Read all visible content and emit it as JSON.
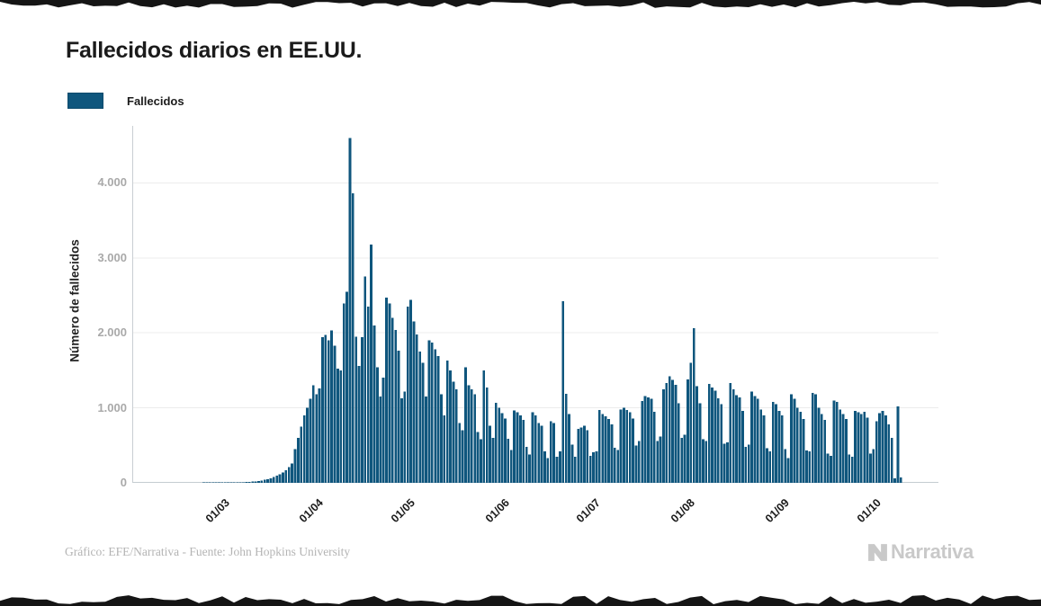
{
  "page": {
    "title": "Fallecidos diarios en EE.UU.",
    "legend": {
      "label": "Fallecidos",
      "swatch_color": "#0F567D"
    },
    "footer": {
      "credit": "Gráfico: EFE/Narrativa - Fuente: John Hopkins University"
    },
    "brand": {
      "name": "Narrativa"
    }
  },
  "chart_data": {
    "type": "bar",
    "title": "Fallecidos diarios en EE.UU.",
    "xlabel": "",
    "ylabel": "Número de fallecidos",
    "legend_entries": [
      "Fallecidos"
    ],
    "legend_position": "top-left",
    "bar_color": "#0F567D",
    "grid": "horizontal",
    "ylim": [
      0,
      4600
    ],
    "ytick_values": [
      0,
      1000,
      2000,
      3000,
      4000
    ],
    "ytick_labels": [
      "0",
      "1.000",
      "2.000",
      "3.000",
      "4.000"
    ],
    "xtick_labels": [
      "01/03",
      "01/04",
      "01/05",
      "01/06",
      "01/07",
      "01/08",
      "01/09",
      "01/10"
    ],
    "xtick_day_index": [
      25,
      56,
      86,
      117,
      147,
      178,
      209,
      239
    ],
    "values": [
      0,
      0,
      0,
      0,
      0,
      0,
      0,
      0,
      0,
      0,
      0,
      0,
      0,
      0,
      0,
      0,
      0,
      0,
      0,
      0,
      0,
      0,
      0,
      1,
      1,
      1,
      2,
      3,
      2,
      4,
      3,
      4,
      5,
      4,
      6,
      7,
      9,
      11,
      14,
      17,
      21,
      26,
      32,
      40,
      50,
      62,
      78,
      95,
      115,
      140,
      170,
      210,
      260,
      450,
      600,
      750,
      900,
      1000,
      1120,
      1300,
      1180,
      1260,
      1940,
      1970,
      1900,
      2030,
      1830,
      1520,
      1500,
      2390,
      2550,
      4600,
      3860,
      1950,
      1560,
      1940,
      2750,
      2350,
      3180,
      2100,
      1540,
      1150,
      1400,
      2470,
      2390,
      2200,
      2040,
      1760,
      1130,
      1220,
      2350,
      2440,
      2150,
      1980,
      1750,
      1600,
      1150,
      1900,
      1870,
      1780,
      1690,
      1180,
      900,
      1630,
      1500,
      1350,
      1250,
      800,
      700,
      1540,
      1300,
      1250,
      1180,
      680,
      580,
      1500,
      1270,
      760,
      600,
      1065,
      1000,
      930,
      860,
      585,
      440,
      965,
      940,
      900,
      840,
      480,
      380,
      940,
      900,
      800,
      760,
      420,
      330,
      820,
      800,
      350,
      420,
      2420,
      1190,
      920,
      510,
      350,
      720,
      740,
      760,
      700,
      360,
      410,
      420,
      970,
      920,
      890,
      850,
      780,
      470,
      440,
      980,
      1000,
      970,
      940,
      860,
      500,
      560,
      1090,
      1160,
      1140,
      1120,
      950,
      560,
      620,
      1250,
      1330,
      1420,
      1370,
      1310,
      1060,
      600,
      640,
      1380,
      1600,
      2060,
      1290,
      1060,
      580,
      560,
      1320,
      1270,
      1230,
      1130,
      1050,
      520,
      540,
      1330,
      1250,
      1170,
      1140,
      960,
      480,
      510,
      1220,
      1160,
      1120,
      980,
      900,
      460,
      420,
      1080,
      1050,
      960,
      900,
      450,
      330,
      1180,
      1120,
      1000,
      950,
      850,
      430,
      420,
      1200,
      1180,
      1000,
      920,
      840,
      390,
      360,
      1100,
      1080,
      980,
      920,
      850,
      380,
      350,
      960,
      940,
      920,
      950,
      870,
      390,
      450,
      820,
      930,
      960,
      900,
      780,
      600,
      60,
      1020,
      70
    ]
  }
}
